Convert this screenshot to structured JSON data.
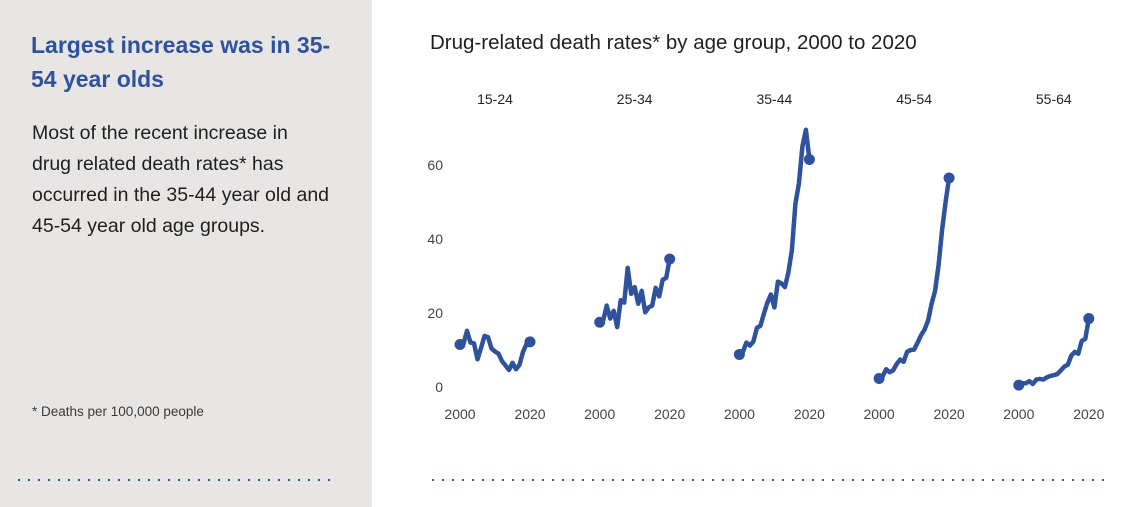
{
  "sidebar": {
    "heading": "Largest increase was in 35-54 year olds",
    "body": "Most of the recent increase in drug related death rates* has occurred in the 35-44 year old and 45-54 year old age groups.",
    "footnote": "* Deaths per 100,000 people"
  },
  "colors": {
    "accent": "#2f529c",
    "sidebar_bg": "#e8e6e5"
  },
  "chart_data": {
    "type": "line",
    "title": "Drug-related death rates* by age group, 2000 to 2020",
    "ylabel": "",
    "xlabel": "",
    "ylim": [
      0,
      70
    ],
    "yticks": [
      0,
      20,
      40,
      60
    ],
    "xticks": [
      2000,
      2020
    ],
    "xlim": [
      2000,
      2020
    ],
    "series": [
      {
        "name": "15-24",
        "x": [
          2000,
          2001,
          2002,
          2003,
          2004,
          2005,
          2006,
          2007,
          2008,
          2009,
          2010,
          2011,
          2012,
          2013,
          2014,
          2015,
          2016,
          2017,
          2018,
          2019,
          2020
        ],
        "values": [
          11.5,
          11.7,
          15.2,
          12.0,
          11.8,
          7.5,
          10.5,
          13.8,
          13.5,
          10.4,
          9.6,
          9.0,
          7.0,
          5.8,
          4.6,
          6.5,
          4.8,
          6.0,
          9.5,
          11.6,
          12.2
        ]
      },
      {
        "name": "25-34",
        "x": [
          2000,
          2001,
          2002,
          2003,
          2004,
          2005,
          2006,
          2007,
          2008,
          2009,
          2010,
          2011,
          2012,
          2013,
          2014,
          2015,
          2016,
          2017,
          2018,
          2019,
          2020
        ],
        "values": [
          17.5,
          18.0,
          22.0,
          18.5,
          20.6,
          16.2,
          23.5,
          22.8,
          32.2,
          25.2,
          27.0,
          22.5,
          26.0,
          20.2,
          21.5,
          22.0,
          26.8,
          24.5,
          29.0,
          29.5,
          34.6
        ]
      },
      {
        "name": "35-44",
        "x": [
          2000,
          2001,
          2002,
          2003,
          2004,
          2005,
          2006,
          2007,
          2008,
          2009,
          2010,
          2011,
          2012,
          2013,
          2014,
          2015,
          2016,
          2017,
          2018,
          2019,
          2020
        ],
        "values": [
          8.8,
          9.5,
          12.0,
          11.2,
          12.3,
          16.0,
          16.5,
          19.8,
          22.8,
          25.0,
          21.5,
          28.5,
          28.0,
          27.0,
          31.0,
          37.0,
          49.5,
          55.0,
          65.0,
          69.5,
          61.5
        ]
      },
      {
        "name": "45-54",
        "x": [
          2000,
          2001,
          2002,
          2003,
          2004,
          2005,
          2006,
          2007,
          2008,
          2009,
          2010,
          2011,
          2012,
          2013,
          2014,
          2015,
          2016,
          2017,
          2018,
          2019,
          2020
        ],
        "values": [
          2.3,
          2.8,
          4.8,
          4.0,
          4.5,
          6.2,
          7.4,
          6.8,
          9.5,
          10.0,
          10.1,
          12.0,
          14.0,
          15.5,
          18.0,
          22.5,
          26.0,
          33.0,
          42.5,
          50.0,
          56.5
        ]
      },
      {
        "name": "55-64",
        "x": [
          2000,
          2001,
          2002,
          2003,
          2004,
          2005,
          2006,
          2007,
          2008,
          2009,
          2010,
          2011,
          2012,
          2013,
          2014,
          2015,
          2016,
          2017,
          2018,
          2019,
          2020
        ],
        "values": [
          0.5,
          1.0,
          1.0,
          1.6,
          0.8,
          2.0,
          2.2,
          2.0,
          2.6,
          3.0,
          3.2,
          3.5,
          4.5,
          5.5,
          6.0,
          8.5,
          9.5,
          9.0,
          12.5,
          13.0,
          18.5
        ]
      }
    ]
  }
}
